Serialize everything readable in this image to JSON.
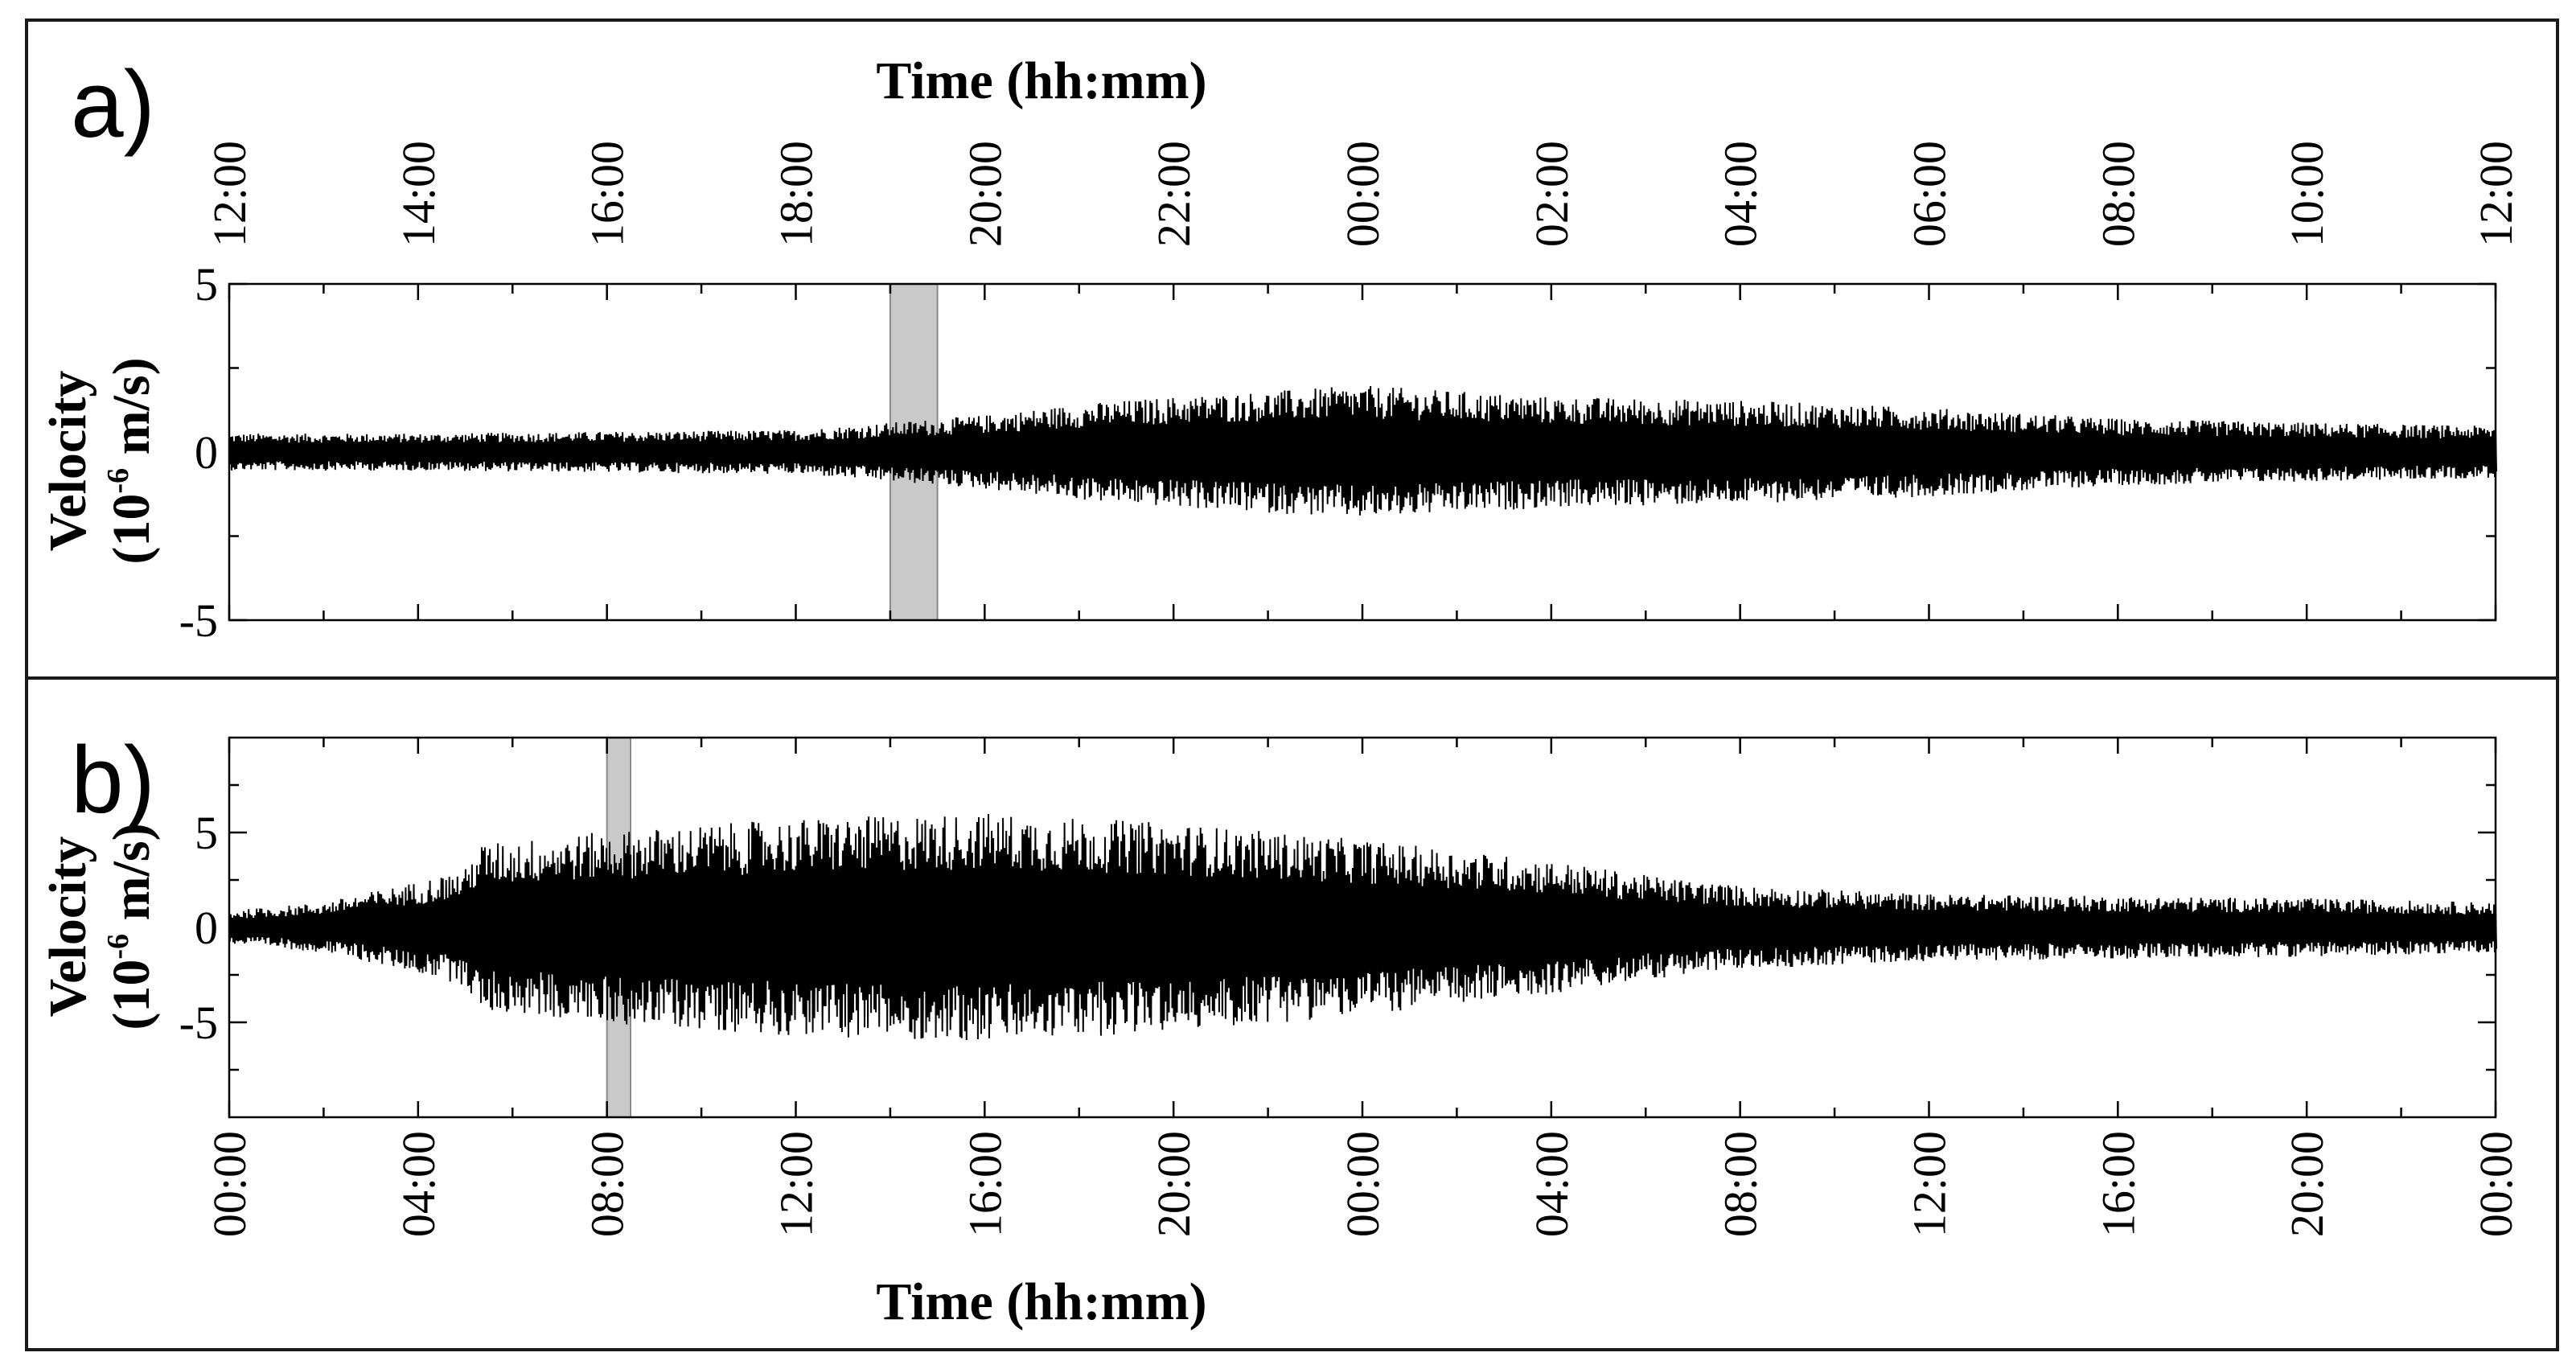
{
  "chart_data": [
    {
      "panel": "a)",
      "type": "line",
      "title": "",
      "xlabel": "Time (hh:mm)",
      "ylabel_line1": "Velocity",
      "ylabel_line2_base": "(10",
      "ylabel_line2_exp": "-6",
      "ylabel_line2_unit": " m/s)",
      "ylim": [
        -5,
        5
      ],
      "yticks": [
        -5,
        0,
        5
      ],
      "ytick_labels": [
        "-5",
        "0",
        "5"
      ],
      "x_hours_range": [
        0,
        24
      ],
      "xtick_labels": [
        "12:00",
        "14:00",
        "16:00",
        "18:00",
        "20:00",
        "22:00",
        "00:00",
        "02:00",
        "04:00",
        "06:00",
        "08:00",
        "10:00",
        "12:00"
      ],
      "shaded_interval_hours": [
        7.0,
        7.5
      ],
      "trace_color": "#000000",
      "shade_color": "#c9c9c9",
      "series": [
        {
          "hours": [
            0,
            2,
            4,
            6,
            7,
            8,
            9,
            10,
            12,
            14,
            16,
            18,
            20,
            22,
            24
          ],
          "amplitude": [
            0.5,
            0.5,
            0.55,
            0.6,
            0.8,
            1.0,
            1.3,
            1.5,
            1.8,
            1.5,
            1.4,
            1.2,
            0.9,
            0.8,
            0.7
          ]
        }
      ]
    },
    {
      "panel": "b)",
      "type": "line",
      "title": "",
      "xlabel": "Time (hh:mm)",
      "ylabel_line1": "Velocity",
      "ylabel_line2_base": "(10",
      "ylabel_line2_exp": "-6",
      "ylabel_line2_unit": " m/s)",
      "ylim": [
        -10,
        10
      ],
      "yticks": [
        -5,
        0,
        5
      ],
      "ytick_labels": [
        "-5",
        "0",
        "5"
      ],
      "x_hours_range": [
        0,
        48
      ],
      "xtick_labels": [
        "00:00",
        "04:00",
        "08:00",
        "12:00",
        "16:00",
        "20:00",
        "00:00",
        "04:00",
        "08:00",
        "12:00",
        "16:00",
        "20:00",
        "00:00"
      ],
      "shaded_interval_hours": [
        8.0,
        8.5
      ],
      "trace_color": "#000000",
      "shade_color": "#c9c9c9",
      "series": [
        {
          "hours": [
            0,
            2,
            4,
            5,
            5.3,
            8,
            12,
            16,
            20,
            24,
            28,
            30,
            32,
            36,
            40,
            44,
            48
          ],
          "amplitude": [
            0.8,
            1.2,
            2.2,
            2.8,
            4.0,
            4.6,
            5.2,
            5.5,
            5.0,
            4.2,
            3.2,
            2.5,
            2.0,
            1.6,
            1.5,
            1.4,
            1.2
          ]
        }
      ]
    }
  ]
}
